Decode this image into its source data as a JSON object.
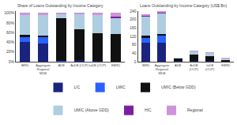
{
  "chart_data": [
    {
      "type": "bar",
      "stacked": true,
      "grid": false,
      "legend": "bottom",
      "title": "Share of Loans Outstanding by Income Category",
      "categories": [
        "IBRD",
        "Aggregate\nRegional\nMDB",
        "ADB",
        "AsDB (OCP)",
        "IaDB (OCP)",
        "EBRD"
      ],
      "series": [
        {
          "name": "LIC",
          "color": "#1a237e",
          "values": [
            0.4,
            0.37,
            0.0,
            0.04,
            0.02,
            0.0
          ]
        },
        {
          "name": "LMIC",
          "color": "#2962ff",
          "values": [
            0.1,
            0.14,
            0.02,
            0.0,
            0.0,
            0.0
          ]
        },
        {
          "name": "UMIC (Below GDD)",
          "color": "#111111",
          "values": [
            0.05,
            0.02,
            0.87,
            0.63,
            0.57,
            0.57
          ]
        },
        {
          "name": "UMIC (Above GDD)",
          "color": "#aecde0",
          "values": [
            0.41,
            0.43,
            0.09,
            0.31,
            0.37,
            0.32
          ]
        },
        {
          "name": "HIC",
          "color": "#7b1fa2",
          "values": [
            0.01,
            0.01,
            0.0,
            0.0,
            0.0,
            0.04
          ]
        },
        {
          "name": "Regional",
          "color": "#ce93d8",
          "values": [
            0.03,
            0.03,
            0.02,
            0.02,
            0.04,
            0.07
          ]
        }
      ],
      "ylim": [
        0,
        1.04
      ],
      "yticks": [
        {
          "value": 0,
          "label": "0%"
        },
        {
          "value": 0.2,
          "label": "20%"
        },
        {
          "value": 0.4,
          "label": "40%"
        },
        {
          "value": 0.6,
          "label": "60%"
        },
        {
          "value": 0.8,
          "label": "80%"
        },
        {
          "value": 1.0,
          "label": "100%"
        }
      ]
    },
    {
      "type": "bar",
      "stacked": true,
      "grid": false,
      "legend": "bottom",
      "title": "Loans Outstanding by Income Category (US$ Bn)",
      "categories": [
        "IBRD",
        "Aggregate\nRegional\nMDB",
        "ADB",
        "AsDB\n(OCP)",
        "IaDB\n(OCP)",
        "EBRD"
      ],
      "series": [
        {
          "name": "LIC",
          "color": "#1a237e",
          "values": [
            90,
            90,
            2,
            4,
            4,
            1
          ]
        },
        {
          "name": "LMIC",
          "color": "#2962ff",
          "values": [
            22,
            35,
            0,
            0,
            0,
            0
          ]
        },
        {
          "name": "UMIC (Below GDD)",
          "color": "#111111",
          "values": [
            12,
            5,
            14,
            30,
            23,
            9
          ]
        },
        {
          "name": "UMIC (Above GDD)",
          "color": "#aecde0",
          "values": [
            92,
            100,
            1,
            15,
            15,
            5
          ]
        },
        {
          "name": "HIC",
          "color": "#7b1fa2",
          "values": [
            2,
            2,
            0,
            0,
            0,
            1
          ]
        },
        {
          "name": "Regional",
          "color": "#ce93d8",
          "values": [
            6,
            8,
            0,
            1,
            2,
            1
          ]
        }
      ],
      "ylim": [
        0,
        240
      ],
      "yticks": [
        0,
        40,
        80,
        120,
        160,
        200,
        240
      ]
    }
  ]
}
